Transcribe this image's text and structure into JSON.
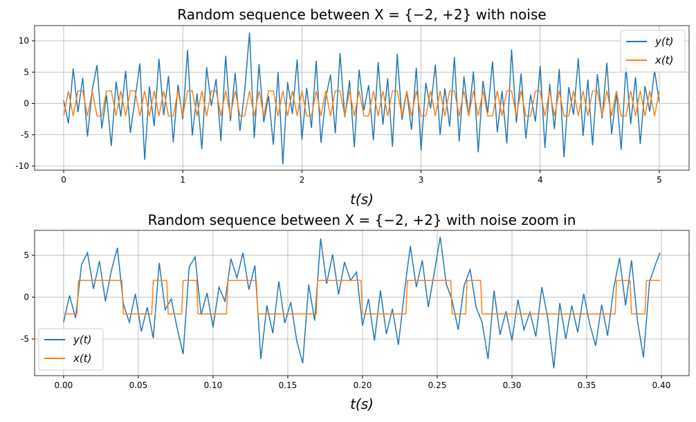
{
  "chart_data": [
    {
      "type": "line",
      "title": "Random sequence between X = {−2, +2} with noise",
      "x_label": "t(s)",
      "x": [
        0,
        0.04,
        0.08,
        0.12,
        0.16,
        0.2,
        0.24,
        0.28,
        0.32,
        0.36,
        0.4,
        0.44,
        0.48,
        0.52,
        0.56,
        0.6,
        0.64,
        0.68,
        0.72,
        0.76,
        0.8,
        0.84,
        0.88,
        0.92,
        0.96,
        1,
        1.04,
        1.08,
        1.12,
        1.16,
        1.2,
        1.24,
        1.28,
        1.32,
        1.36,
        1.4,
        1.44,
        1.48,
        1.52,
        1.56,
        1.6,
        1.64,
        1.68,
        1.72,
        1.76,
        1.8,
        1.84,
        1.88,
        1.92,
        1.96,
        2,
        2.04,
        2.08,
        2.12,
        2.16,
        2.2,
        2.24,
        2.28,
        2.32,
        2.36,
        2.4,
        2.44,
        2.48,
        2.52,
        2.56,
        2.6,
        2.64,
        2.68,
        2.72,
        2.76,
        2.8,
        2.84,
        2.88,
        2.92,
        2.96,
        3,
        3.04,
        3.08,
        3.12,
        3.16,
        3.2,
        3.24,
        3.28,
        3.32,
        3.36,
        3.4,
        3.44,
        3.48,
        3.52,
        3.56,
        3.6,
        3.64,
        3.68,
        3.72,
        3.76,
        3.8,
        3.84,
        3.88,
        3.92,
        3.96,
        4,
        4.04,
        4.08,
        4.12,
        4.16,
        4.2,
        4.24,
        4.28,
        4.32,
        4.36,
        4.4,
        4.44,
        4.48,
        4.52,
        4.56,
        4.6,
        4.64,
        4.68,
        4.72,
        4.76,
        4.8,
        4.84,
        4.88,
        4.92,
        4.96,
        5
      ],
      "series": [
        {
          "name": "y(t)",
          "color": "#1f77b4",
          "values": [
            0.5,
            -3.2,
            5.6,
            -1.4,
            4.1,
            -5.3,
            2.2,
            6.1,
            -4.0,
            1.3,
            -6.8,
            3.5,
            -2.1,
            5.2,
            -4.7,
            0.8,
            6.4,
            -9.0,
            2.7,
            -3.6,
            7.1,
            -1.9,
            4.4,
            -6.2,
            3.0,
            -2.5,
            8.5,
            -5.1,
            1.6,
            -7.3,
            5.8,
            -0.4,
            3.9,
            -6.0,
            7.6,
            -2.8,
            4.9,
            -4.4,
            2.1,
            11.3,
            -5.5,
            6.3,
            -3.0,
            1.2,
            -6.6,
            5.0,
            -9.7,
            3.4,
            -1.7,
            7.0,
            -5.8,
            2.5,
            -3.9,
            6.8,
            -6.3,
            0.9,
            4.6,
            -4.8,
            8.0,
            -2.2,
            3.7,
            -7.0,
            5.4,
            -1.1,
            2.9,
            -5.9,
            6.6,
            -3.4,
            4.0,
            -6.9,
            7.9,
            -2.6,
            1.9,
            -4.2,
            5.7,
            -7.5,
            3.3,
            -0.8,
            6.2,
            -5.0,
            2.4,
            -3.7,
            7.4,
            -6.1,
            4.3,
            -2.0,
            5.1,
            -7.8,
            3.6,
            -1.5,
            6.7,
            -4.6,
            2.0,
            -6.4,
            8.6,
            -3.1,
            4.8,
            -5.6,
            1.4,
            -2.9,
            6.0,
            -7.1,
            3.1,
            -4.1,
            5.5,
            -8.6,
            2.6,
            -1.8,
            7.2,
            -5.2,
            3.8,
            -6.7,
            4.7,
            -2.4,
            6.5,
            -4.9,
            1.7,
            -7.4,
            5.9,
            -3.3,
            4.2,
            -6.5,
            2.8,
            -1.3,
            5.3,
            0.2
          ]
        },
        {
          "name": "x(t)",
          "color": "#ff7f0e",
          "values": [
            -2,
            2,
            -2,
            2,
            2,
            -2,
            2,
            -2,
            -2,
            2,
            2,
            -2,
            2,
            -2,
            2,
            2,
            -2,
            2,
            -2,
            2,
            -2,
            2,
            -2,
            -2,
            2,
            -2,
            2,
            2,
            -2,
            2,
            -2,
            2,
            2,
            -2,
            2,
            -2,
            2,
            -2,
            -2,
            2,
            -2,
            2,
            -2,
            2,
            2,
            -2,
            2,
            -2,
            2,
            -2,
            2,
            -2,
            -2,
            2,
            -2,
            2,
            -2,
            2,
            2,
            -2,
            2,
            -2,
            2,
            -2,
            -2,
            2,
            -2,
            2,
            -2,
            2,
            2,
            -2,
            2,
            -2,
            2,
            -2,
            -2,
            2,
            -2,
            2,
            -2,
            2,
            2,
            -2,
            2,
            -2,
            2,
            -2,
            2,
            -2,
            -2,
            2,
            -2,
            2,
            2,
            -2,
            2,
            -2,
            -2,
            2,
            2,
            -2,
            2,
            -2,
            2,
            -2,
            -2,
            2,
            -2,
            2,
            -2,
            2,
            2,
            -2,
            2,
            -2,
            2,
            -2,
            -2,
            2,
            -2,
            2,
            -2,
            2,
            -2,
            2
          ]
        }
      ],
      "xlim": [
        -0.244,
        5.25
      ],
      "ylim": [
        -10.66,
        12.43
      ],
      "xticks": [
        0,
        1,
        2,
        3,
        4,
        5
      ],
      "yticks": [
        -10,
        -5,
        0,
        5,
        10
      ],
      "grid": true,
      "legend": "upper right"
    },
    {
      "type": "line",
      "title": "Random sequence between X = {−2, +2} with noise zoom in",
      "x_label": "t(s)",
      "series": [
        {
          "name": "y(t)",
          "color": "#1f77b4",
          "x": [
            0,
            0.004,
            0.008,
            0.012,
            0.016,
            0.02,
            0.024,
            0.028,
            0.032,
            0.036,
            0.04,
            0.044,
            0.048,
            0.052,
            0.056,
            0.06,
            0.064,
            0.068,
            0.072,
            0.076,
            0.08,
            0.084,
            0.088,
            0.092,
            0.096,
            0.1,
            0.104,
            0.108,
            0.112,
            0.116,
            0.12,
            0.124,
            0.128,
            0.132,
            0.136,
            0.14,
            0.144,
            0.148,
            0.152,
            0.156,
            0.16,
            0.164,
            0.168,
            0.172,
            0.176,
            0.18,
            0.184,
            0.188,
            0.192,
            0.196,
            0.2,
            0.204,
            0.208,
            0.212,
            0.216,
            0.22,
            0.224,
            0.228,
            0.232,
            0.236,
            0.24,
            0.244,
            0.248,
            0.252,
            0.256,
            0.26,
            0.264,
            0.268,
            0.272,
            0.276,
            0.28,
            0.284,
            0.288,
            0.292,
            0.296,
            0.3,
            0.304,
            0.308,
            0.312,
            0.316,
            0.32,
            0.324,
            0.328,
            0.332,
            0.336,
            0.34,
            0.344,
            0.348,
            0.352,
            0.356,
            0.36,
            0.364,
            0.368,
            0.372,
            0.376,
            0.38,
            0.384,
            0.388,
            0.392,
            0.396,
            0.399
          ],
          "values": [
            -3.0,
            0.2,
            -2.5,
            3.9,
            5.3,
            1.0,
            4.3,
            -0.5,
            3.2,
            5.9,
            -0.8,
            -3.0,
            0.4,
            -4.1,
            -1.2,
            -4.9,
            4.1,
            -1.5,
            -0.2,
            -3.7,
            -6.8,
            3.6,
            4.8,
            -2.1,
            0.5,
            -3.6,
            1.2,
            -0.5,
            4.6,
            2.3,
            5.3,
            0.9,
            3.8,
            -7.4,
            -1.0,
            -4.3,
            1.9,
            -3.1,
            -0.6,
            -5.2,
            -7.9,
            1.5,
            -2.8,
            7.0,
            1.6,
            5.1,
            0.3,
            4.2,
            2.0,
            3.0,
            -3.4,
            -0.2,
            -5.2,
            0.8,
            -4.4,
            -1.4,
            -5.7,
            0.6,
            6.1,
            1.2,
            4.4,
            -1.2,
            2.9,
            7.2,
            1.6,
            -0.4,
            -3.9,
            1.4,
            3.3,
            -1.2,
            -3.0,
            -7.4,
            0.8,
            -4.5,
            -1.7,
            -5.2,
            -0.3,
            -3.9,
            -1.8,
            -4.7,
            1.2,
            -2.6,
            -8.5,
            -0.7,
            -5.0,
            -1.0,
            -4.2,
            0.4,
            -3.2,
            -5.8,
            -0.9,
            -4.6,
            1.0,
            4.7,
            -1.0,
            4.4,
            -2.9,
            -7.2,
            1.8,
            3.9,
            5.3
          ]
        },
        {
          "name": "x(t)",
          "color": "#ff7f0e",
          "x": [
            0,
            0.009,
            0.01,
            0.039,
            0.04,
            0.059,
            0.06,
            0.069,
            0.07,
            0.079,
            0.08,
            0.089,
            0.09,
            0.109,
            0.11,
            0.129,
            0.13,
            0.169,
            0.17,
            0.199,
            0.2,
            0.229,
            0.23,
            0.259,
            0.26,
            0.269,
            0.27,
            0.279,
            0.28,
            0.369,
            0.37,
            0.379,
            0.38,
            0.389,
            0.39,
            0.399
          ],
          "values": [
            -2,
            -2,
            2,
            2,
            -2,
            -2,
            2,
            2,
            -2,
            -2,
            2,
            2,
            -2,
            -2,
            2,
            2,
            -2,
            -2,
            2,
            2,
            -2,
            -2,
            2,
            2,
            -2,
            -2,
            2,
            2,
            -2,
            -2,
            2,
            2,
            -2,
            -2,
            2,
            2
          ]
        }
      ],
      "xlim": [
        -0.0194,
        0.4185
      ],
      "ylim": [
        -9.38,
        7.98
      ],
      "xticks": [
        {
          "value": 0,
          "label": "0.00"
        },
        0.05,
        {
          "value": 0.1,
          "label": "0.10"
        },
        0.15,
        {
          "value": 0.2,
          "label": "0.20"
        },
        0.25,
        {
          "value": 0.3,
          "label": "0.30"
        },
        0.35,
        {
          "value": 0.4,
          "label": "0.40"
        }
      ],
      "yticks": [
        -5,
        0,
        5
      ],
      "grid": true,
      "legend": "lower left"
    }
  ]
}
